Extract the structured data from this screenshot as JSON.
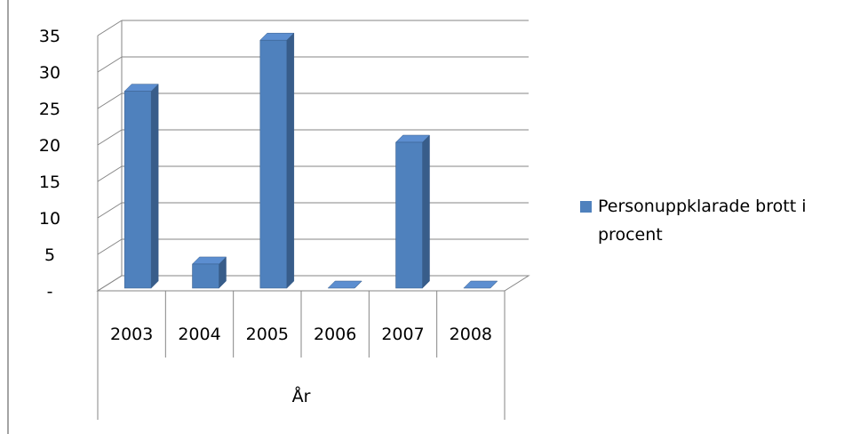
{
  "chart_data": {
    "type": "bar",
    "style": "3d-column",
    "title": "",
    "xlabel": "År",
    "ylabel": "",
    "categories": [
      "2003",
      "2004",
      "2005",
      "2006",
      "2007",
      "2008"
    ],
    "series": [
      {
        "name": "Personuppklarade brott i procent",
        "values": [
          27,
          3.3,
          34,
          0,
          20,
          0
        ],
        "color": "#4F81BD"
      }
    ],
    "ylim": [
      0,
      35
    ],
    "yticks": [
      "-",
      "5",
      "10",
      "15",
      "20",
      "25",
      "30",
      "35"
    ],
    "grid": true,
    "legend_position": "right",
    "legend_lines": [
      "Personuppklarade brott i",
      "procent"
    ],
    "colors": {
      "bar_front": "#4F81BD",
      "bar_side": "#385D8A",
      "bar_top": "#5C8ED0",
      "grid": "#868686",
      "axis": "#868686"
    }
  }
}
